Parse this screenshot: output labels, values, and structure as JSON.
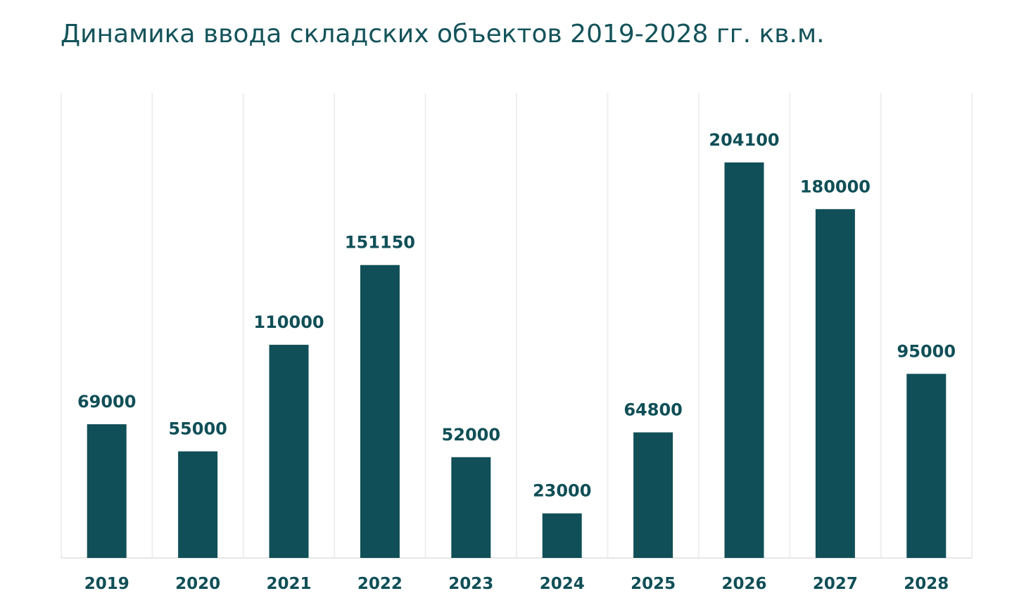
{
  "chart_data": {
    "type": "bar",
    "title": "Динамика ввода складских объектов 2019-2028 гг. кв.м.",
    "categories": [
      "2019",
      "2020",
      "2021",
      "2022",
      "2023",
      "2024",
      "2025",
      "2026",
      "2027",
      "2028"
    ],
    "values": [
      69000,
      55000,
      110000,
      151150,
      52000,
      23000,
      64800,
      204100,
      180000,
      95000
    ],
    "ylim": [
      0,
      240000
    ],
    "grid": "vertical",
    "legend": "none",
    "bar_color": "#104f57",
    "title_color": "#14535a"
  }
}
